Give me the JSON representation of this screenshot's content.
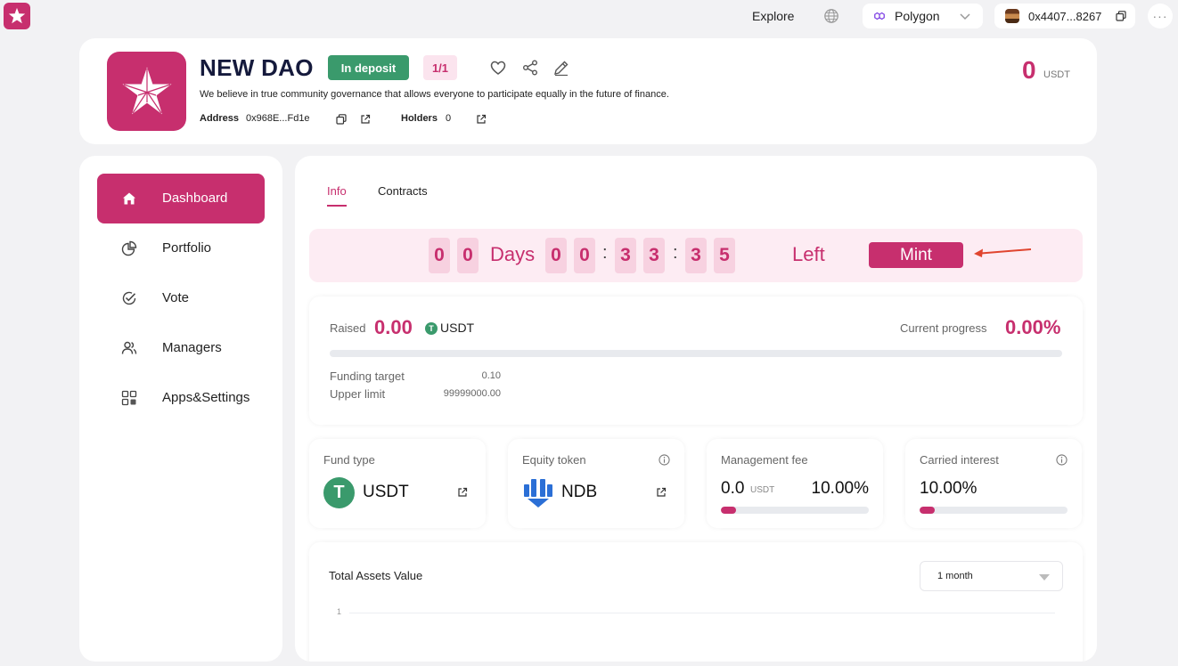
{
  "topbar": {
    "explore_label": "Explore",
    "network": "Polygon",
    "wallet_address": "0x4407...8267",
    "more_label": "···"
  },
  "dao": {
    "name": "NEW DAO",
    "status": "In deposit",
    "fraction": "1/1",
    "description": "We believe in true community governance that allows everyone to participate equally in the future of finance.",
    "address_label": "Address",
    "address": "0x968E...Fd1e",
    "holders_label": "Holders",
    "holders": "0",
    "balance": "0",
    "balance_unit": "USDT"
  },
  "sidebar": {
    "items": [
      {
        "label": "Dashboard",
        "icon": "home-icon",
        "active": true
      },
      {
        "label": "Portfolio",
        "icon": "pie-chart-icon"
      },
      {
        "label": "Vote",
        "icon": "check-circle-icon"
      },
      {
        "label": "Managers",
        "icon": "users-icon"
      },
      {
        "label": "Apps&Settings",
        "icon": "apps-grid-icon"
      }
    ]
  },
  "main": {
    "tabs": [
      {
        "label": "Info",
        "active": true
      },
      {
        "label": "Contracts"
      }
    ],
    "countdown": {
      "days_digits": [
        "0",
        "0"
      ],
      "days_label": "Days",
      "hours_digits": [
        "0",
        "0"
      ],
      "minutes_digits": [
        "3",
        "3"
      ],
      "seconds_digits": [
        "3",
        "5"
      ],
      "separator": ":",
      "left_label": "Left",
      "mint_label": "Mint"
    },
    "raise": {
      "raised_label": "Raised",
      "raised_value": "0.00",
      "currency_symbol": "T",
      "currency": "USDT",
      "progress_label": "Current progress",
      "progress_value": "0.00%",
      "progress_fraction": 0,
      "funding_target_label": "Funding target",
      "funding_target": "0.10",
      "upper_limit_label": "Upper limit",
      "upper_limit": "99999000.00"
    },
    "stats": {
      "fund_type": {
        "title": "Fund type",
        "coin": "USDT",
        "symbol": "T"
      },
      "equity_token": {
        "title": "Equity token",
        "token": "NDB"
      },
      "management_fee": {
        "title": "Management fee",
        "value": "0.0",
        "unit": "USDT",
        "pct": "10.00%",
        "fill_fraction": 0.1
      },
      "carried_interest": {
        "title": "Carried interest",
        "pct": "10.00%",
        "fill_fraction": 0.1
      }
    },
    "total_assets": {
      "title": "Total Assets Value",
      "period": "1 month",
      "y_tick": "1"
    }
  },
  "colors": {
    "accent": "#c72f6e",
    "accent_light": "#fdecf3",
    "success": "#3a9a6c",
    "equity_blue": "#2b6fd6"
  }
}
